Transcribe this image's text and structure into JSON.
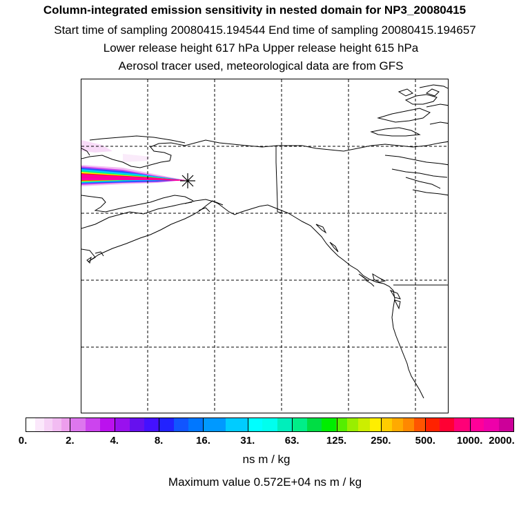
{
  "header": {
    "title": "Column-integrated emission sensitivity in nested domain for NP3_20080415",
    "line2": "Start time of sampling 20080415.194544     End time of sampling 20080415.194657",
    "line3": "Lower release height  617 hPa        Upper release height  615 hPa",
    "line4": "Aerosol tracer used, meteorological data are from GFS"
  },
  "legend": {
    "ticks": [
      "0.",
      "2.",
      "4.",
      "8.",
      "16.",
      "31.",
      "63.",
      "125.",
      "250.",
      "500.",
      "1000.",
      "2000."
    ],
    "units": "ns m / kg",
    "maximum_text": "Maximum value  0.572E+04 ns m / kg",
    "colors": [
      "#ffffff",
      "#fbe8fb",
      "#f6d2f6",
      "#f2bcf2",
      "#ed9eed",
      "#dd77ee",
      "#cc44ee",
      "#bb11ee",
      "#9911ee",
      "#6611ee",
      "#4411ff",
      "#2222ff",
      "#1155ff",
      "#0077ff",
      "#0099ff",
      "#00ccff",
      "#00ffff",
      "#00ffee",
      "#00eebb",
      "#00ee88",
      "#00dd44",
      "#00ee00",
      "#55ee00",
      "#99ee00",
      "#ccee00",
      "#ffee00",
      "#ffcc00",
      "#ffaa00",
      "#ff8800",
      "#ff5500",
      "#ff2200",
      "#ff0033",
      "#ff0077",
      "#ff0099",
      "#ee00aa",
      "#cc0099",
      "#aa0088",
      "#880077",
      "#660066",
      "#440044"
    ],
    "groups": [
      5,
      3,
      3,
      3,
      2,
      3,
      3,
      4,
      4,
      3,
      3,
      4
    ]
  },
  "map": {
    "release_marker": "release-point-star",
    "plume_colors": [
      "#ff00aa",
      "#ff0066",
      "#ff2200",
      "#ffaa00",
      "#ffee00",
      "#88ee00",
      "#00ee88",
      "#00ccff",
      "#2255ff",
      "#cc44ee",
      "#f2bcf2"
    ]
  }
}
